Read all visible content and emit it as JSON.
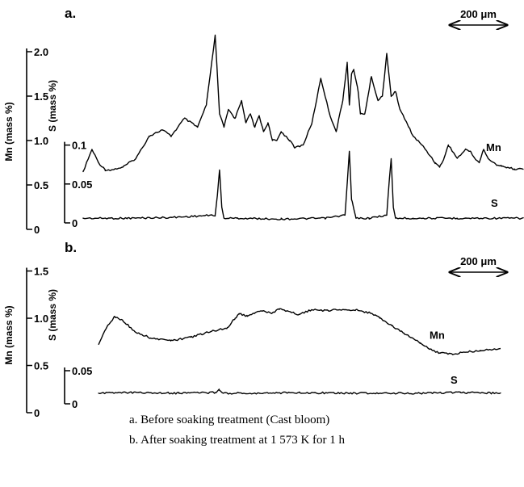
{
  "chart_data": [
    {
      "type": "line",
      "panel_label": "a.",
      "scale_bar": "200 μm",
      "left_axis": {
        "title": "Mn (mass %)",
        "ticks": [
          "0",
          "0.5",
          "1.0",
          "1.5",
          "2.0"
        ],
        "ylim": [
          0,
          2.2
        ]
      },
      "right_axis": {
        "title": "S (mass %)",
        "ticks": [
          "0",
          "0.05",
          "0.1"
        ],
        "ylim": [
          0,
          0.11
        ]
      },
      "series": [
        {
          "name": "Mn",
          "axis": "left",
          "x": [
            0,
            0.02,
            0.035,
            0.05,
            0.065,
            0.09,
            0.12,
            0.15,
            0.18,
            0.2,
            0.23,
            0.26,
            0.28,
            0.3,
            0.31,
            0.32,
            0.33,
            0.345,
            0.36,
            0.37,
            0.38,
            0.39,
            0.4,
            0.41,
            0.42,
            0.43,
            0.44,
            0.45,
            0.46,
            0.47,
            0.48,
            0.5,
            0.52,
            0.54,
            0.56,
            0.575,
            0.59,
            0.6,
            0.605,
            0.61,
            0.615,
            0.625,
            0.63,
            0.64,
            0.655,
            0.67,
            0.68,
            0.69,
            0.7,
            0.71,
            0.72,
            0.73,
            0.74,
            0.75,
            0.77,
            0.79,
            0.8,
            0.81,
            0.82,
            0.83,
            0.85,
            0.87,
            0.88,
            0.89,
            0.9,
            0.91,
            0.92,
            0.94,
            0.95,
            0.96,
            0.98,
            1.0
          ],
          "y": [
            0.65,
            0.9,
            0.75,
            0.67,
            0.67,
            0.7,
            0.8,
            1.05,
            1.12,
            1.05,
            1.25,
            1.15,
            1.4,
            2.18,
            1.3,
            1.15,
            1.35,
            1.25,
            1.45,
            1.2,
            1.3,
            1.15,
            1.28,
            1.1,
            1.2,
            1.0,
            1.0,
            1.1,
            1.05,
            1.0,
            0.92,
            0.95,
            1.2,
            1.7,
            1.3,
            1.1,
            1.45,
            1.88,
            1.4,
            1.75,
            1.8,
            1.55,
            1.3,
            1.3,
            1.72,
            1.45,
            1.5,
            1.98,
            1.5,
            1.55,
            1.35,
            1.25,
            1.15,
            1.05,
            0.95,
            0.82,
            0.75,
            0.7,
            0.8,
            0.95,
            0.8,
            0.9,
            0.88,
            0.8,
            0.75,
            0.9,
            0.8,
            0.72,
            0.72,
            0.7,
            0.68,
            0.68
          ]
        },
        {
          "name": "S",
          "axis": "right",
          "x": [
            0,
            0.1,
            0.2,
            0.3,
            0.305,
            0.31,
            0.315,
            0.32,
            0.35,
            0.45,
            0.55,
            0.595,
            0.6,
            0.605,
            0.61,
            0.62,
            0.65,
            0.69,
            0.695,
            0.7,
            0.705,
            0.71,
            0.75,
            0.85,
            1.0
          ],
          "y": [
            0.006,
            0.006,
            0.007,
            0.01,
            0.035,
            0.068,
            0.02,
            0.006,
            0.006,
            0.005,
            0.006,
            0.01,
            0.05,
            0.092,
            0.03,
            0.006,
            0.006,
            0.01,
            0.05,
            0.082,
            0.02,
            0.006,
            0.006,
            0.006,
            0.006
          ]
        }
      ]
    },
    {
      "type": "line",
      "panel_label": "b.",
      "scale_bar": "200 μm",
      "left_axis": {
        "title": "Mn (mass %)",
        "ticks": [
          "0",
          "0.5",
          "1.0",
          "1.5"
        ],
        "ylim": [
          0,
          1.65
        ]
      },
      "right_axis": {
        "title": "S (mass %)",
        "ticks": [
          "0",
          "0.05"
        ],
        "ylim": [
          0,
          0.1
        ]
      },
      "series": [
        {
          "name": "Mn",
          "axis": "left",
          "x": [
            0,
            0.02,
            0.04,
            0.06,
            0.09,
            0.13,
            0.18,
            0.23,
            0.28,
            0.32,
            0.34,
            0.35,
            0.37,
            0.39,
            0.41,
            0.43,
            0.45,
            0.48,
            0.5,
            0.53,
            0.56,
            0.6,
            0.64,
            0.68,
            0.7,
            0.73,
            0.76,
            0.8,
            0.83,
            0.85,
            0.88,
            0.91,
            0.95,
            1.0
          ],
          "y": [
            0.72,
            0.9,
            1.02,
            0.98,
            0.86,
            0.79,
            0.76,
            0.8,
            0.86,
            0.9,
            1.0,
            1.05,
            1.02,
            1.06,
            1.08,
            1.05,
            1.1,
            1.06,
            1.04,
            1.09,
            1.08,
            1.09,
            1.09,
            1.05,
            1.0,
            0.92,
            0.84,
            0.74,
            0.66,
            0.63,
            0.62,
            0.64,
            0.66,
            0.68
          ]
        },
        {
          "name": "S",
          "axis": "right",
          "x": [
            0,
            0.1,
            0.2,
            0.29,
            0.3,
            0.31,
            0.4,
            0.5,
            0.6,
            0.7,
            0.8,
            0.9,
            1.0
          ],
          "y": [
            0.016,
            0.017,
            0.016,
            0.017,
            0.021,
            0.016,
            0.016,
            0.017,
            0.016,
            0.016,
            0.016,
            0.017,
            0.016
          ]
        }
      ]
    }
  ],
  "captions": [
    "a. Before soaking treatment (Cast bloom)",
    "b. After soaking treatment at 1 573 K for 1 h"
  ]
}
